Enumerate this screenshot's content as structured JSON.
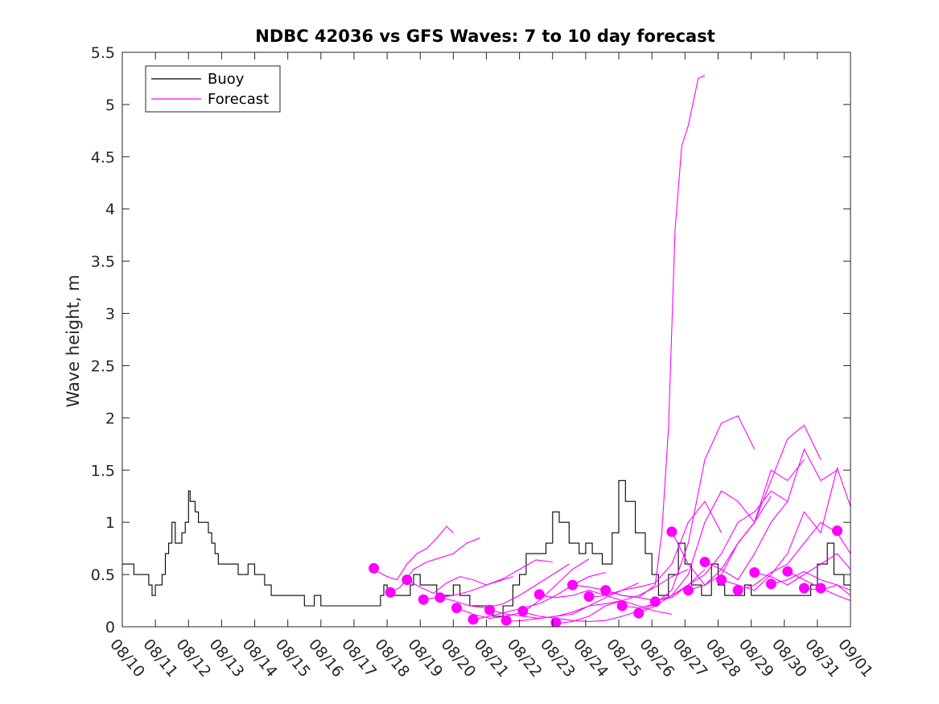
{
  "chart_data": {
    "type": "line",
    "title": "NDBC 42036 vs GFS Waves: 7 to 10 day forecast",
    "xlabel": "",
    "ylabel": "Wave height, m",
    "xlim": [
      "08/10",
      "09/01"
    ],
    "ylim": [
      0,
      5.5
    ],
    "x_ticks": [
      "08/10",
      "08/11",
      "08/12",
      "08/13",
      "08/14",
      "08/15",
      "08/16",
      "08/17",
      "08/18",
      "08/19",
      "08/20",
      "08/21",
      "08/22",
      "08/23",
      "08/24",
      "08/25",
      "08/26",
      "08/27",
      "08/28",
      "08/29",
      "08/30",
      "08/31",
      "09/01"
    ],
    "y_ticks": [
      "0",
      "0.5",
      "1",
      "1.5",
      "2",
      "2.5",
      "3",
      "3.5",
      "4",
      "4.5",
      "5",
      "5.5"
    ],
    "grid": false,
    "legend": {
      "placement": "top-left",
      "entries": [
        "Buoy",
        "Forecast"
      ]
    },
    "colors": {
      "buoy": "#000000",
      "forecast": "#ff00ff"
    },
    "series": [
      {
        "name": "Buoy",
        "x": [
          0,
          0.3,
          0.35,
          0.5,
          0.6,
          0.8,
          0.9,
          1.0,
          1.2,
          1.3,
          1.4,
          1.5,
          1.6,
          1.7,
          1.8,
          1.9,
          2.0,
          2.05,
          2.1,
          2.2,
          2.3,
          2.5,
          2.6,
          2.7,
          2.8,
          2.9,
          3.0,
          3.2,
          3.5,
          3.8,
          4.0,
          4.3,
          4.5,
          4.8,
          5.0,
          5.5,
          5.8,
          6.0,
          6.3,
          6.5,
          6.8,
          7.0,
          7.5,
          7.8,
          7.9,
          8.0,
          8.5,
          8.7,
          8.8,
          9.0,
          9.2,
          9.5,
          9.8,
          10.0,
          10.2,
          10.5,
          10.8,
          11.0,
          11.2,
          11.5,
          11.8,
          12.0,
          12.2,
          12.5,
          12.8,
          13.0,
          13.2,
          13.5,
          13.8,
          14.0,
          14.2,
          14.5,
          14.8,
          15.0,
          15.2,
          15.5,
          15.8,
          16.0,
          16.2,
          16.5,
          16.8,
          17.0,
          17.2,
          17.5,
          17.8,
          18.0,
          18.2,
          18.5,
          18.8,
          19.0,
          19.5,
          20.0,
          20.5,
          20.8,
          21.0,
          21.3,
          21.5,
          21.8,
          22.0
        ],
        "values": [
          0.6,
          0.6,
          0.5,
          0.5,
          0.5,
          0.4,
          0.3,
          0.4,
          0.5,
          0.7,
          0.8,
          1.0,
          0.8,
          0.8,
          0.9,
          1.0,
          1.3,
          1.2,
          1.2,
          1.1,
          1.0,
          1.0,
          0.9,
          0.8,
          0.7,
          0.6,
          0.6,
          0.6,
          0.5,
          0.6,
          0.5,
          0.4,
          0.3,
          0.3,
          0.3,
          0.2,
          0.3,
          0.2,
          0.2,
          0.2,
          0.2,
          0.2,
          0.2,
          0.3,
          0.4,
          0.3,
          0.3,
          0.4,
          0.5,
          0.4,
          0.4,
          0.3,
          0.3,
          0.4,
          0.3,
          0.2,
          0.2,
          0.2,
          0.1,
          0.2,
          0.4,
          0.5,
          0.7,
          0.7,
          0.8,
          1.1,
          1.0,
          0.8,
          0.7,
          0.8,
          0.7,
          0.6,
          0.9,
          1.4,
          1.2,
          0.9,
          0.7,
          0.5,
          0.3,
          0.5,
          0.8,
          0.6,
          0.4,
          0.3,
          0.6,
          0.4,
          0.3,
          0.3,
          0.4,
          0.3,
          0.3,
          0.3,
          0.3,
          0.4,
          0.6,
          0.8,
          0.5,
          0.4,
          0.3
        ]
      },
      {
        "name": "Forecast",
        "x": [
          7.6,
          8.0,
          8.3,
          8.6,
          8.9,
          9.2,
          9.5,
          9.8,
          10.0
        ],
        "values": [
          0.55,
          0.48,
          0.45,
          0.6,
          0.7,
          0.75,
          0.85,
          0.96,
          0.9
        ]
      },
      {
        "name": "Forecast",
        "x": [
          8.1,
          8.4,
          8.8,
          9.2,
          9.6,
          10.0,
          10.4,
          10.8
        ],
        "values": [
          0.33,
          0.38,
          0.55,
          0.62,
          0.66,
          0.7,
          0.8,
          0.85
        ]
      },
      {
        "name": "Forecast",
        "x": [
          8.6,
          9.0,
          9.4,
          9.8,
          10.2,
          10.6,
          11.0,
          11.4,
          11.8
        ],
        "values": [
          0.45,
          0.38,
          0.32,
          0.42,
          0.48,
          0.45,
          0.4,
          0.44,
          0.48
        ]
      },
      {
        "name": "Forecast",
        "x": [
          9.1,
          9.5,
          10.0,
          10.5,
          11.0,
          11.5,
          12.0,
          12.5,
          13.0
        ],
        "values": [
          0.26,
          0.28,
          0.3,
          0.34,
          0.4,
          0.46,
          0.55,
          0.64,
          0.62
        ]
      },
      {
        "name": "Forecast",
        "x": [
          9.6,
          10.0,
          10.5,
          11.0,
          11.5,
          12.0,
          12.5,
          13.0,
          13.5
        ],
        "values": [
          0.28,
          0.25,
          0.2,
          0.18,
          0.22,
          0.3,
          0.4,
          0.5,
          0.6
        ]
      },
      {
        "name": "Forecast",
        "x": [
          10.1,
          10.6,
          11.1,
          11.6,
          12.1,
          12.6,
          13.1,
          13.6,
          14.1
        ],
        "values": [
          0.18,
          0.12,
          0.08,
          0.1,
          0.14,
          0.25,
          0.4,
          0.55,
          0.65
        ]
      },
      {
        "name": "Forecast",
        "x": [
          10.6,
          11.1,
          11.6,
          12.1,
          12.6,
          13.1,
          13.6,
          14.1,
          14.6
        ],
        "values": [
          0.07,
          0.1,
          0.14,
          0.18,
          0.22,
          0.3,
          0.4,
          0.48,
          0.52
        ]
      },
      {
        "name": "Forecast",
        "x": [
          11.1,
          11.6,
          12.1,
          12.6,
          13.1,
          13.6,
          14.1,
          14.6,
          15.1
        ],
        "values": [
          0.16,
          0.12,
          0.1,
          0.08,
          0.1,
          0.14,
          0.2,
          0.22,
          0.25
        ]
      },
      {
        "name": "Forecast",
        "x": [
          11.6,
          12.1,
          12.6,
          13.1,
          13.6,
          14.1,
          14.6,
          15.1,
          15.6
        ],
        "values": [
          0.05,
          0.06,
          0.08,
          0.1,
          0.12,
          0.2,
          0.28,
          0.35,
          0.42
        ]
      },
      {
        "name": "Forecast",
        "x": [
          12.1,
          12.6,
          13.1,
          13.6,
          14.1,
          14.6,
          15.1,
          15.6,
          16.1
        ],
        "values": [
          0.14,
          0.1,
          0.08,
          0.06,
          0.05,
          0.06,
          0.1,
          0.15,
          0.22
        ]
      },
      {
        "name": "Forecast",
        "x": [
          12.6,
          13.1,
          13.6,
          14.1,
          14.6,
          15.1,
          15.6,
          16.1,
          16.6
        ],
        "values": [
          0.3,
          0.28,
          0.3,
          0.35,
          0.3,
          0.25,
          0.2,
          0.15,
          0.12
        ]
      },
      {
        "name": "Forecast",
        "x": [
          13.1,
          13.6,
          14.1,
          14.6,
          15.1,
          15.6,
          16.1,
          16.6,
          17.1
        ],
        "values": [
          0.03,
          0.05,
          0.1,
          0.2,
          0.25,
          0.3,
          0.38,
          0.48,
          0.55
        ]
      },
      {
        "name": "Forecast",
        "x": [
          13.6,
          14.1,
          14.6,
          15.1,
          15.6,
          16.1,
          16.6,
          17.1,
          17.6
        ],
        "values": [
          0.4,
          0.38,
          0.35,
          0.3,
          0.28,
          0.25,
          0.28,
          0.4,
          0.55
        ]
      },
      {
        "name": "Forecast",
        "x": [
          14.1,
          14.6,
          15.1,
          15.6,
          16.1,
          16.6,
          17.1,
          17.6,
          18.1
        ],
        "values": [
          0.28,
          0.3,
          0.35,
          0.38,
          0.42,
          0.6,
          1.0,
          1.2,
          0.9
        ]
      },
      {
        "name": "Forecast",
        "x": [
          14.6,
          15.1,
          15.6,
          16.1,
          16.3,
          16.5,
          16.7,
          16.9,
          17.1,
          17.4,
          17.6
        ],
        "values": [
          0.35,
          0.3,
          0.28,
          0.4,
          0.9,
          1.9,
          3.8,
          4.6,
          4.8,
          5.25,
          5.28
        ]
      },
      {
        "name": "Forecast",
        "x": [
          15.1,
          15.6,
          16.1,
          16.6,
          17.1,
          17.6,
          18.1,
          18.6,
          19.1
        ],
        "values": [
          0.2,
          0.18,
          0.22,
          0.35,
          0.8,
          1.6,
          1.95,
          2.02,
          1.7
        ]
      },
      {
        "name": "Forecast",
        "x": [
          15.6,
          16.1,
          16.6,
          17.1,
          17.6,
          18.1,
          18.6,
          19.1,
          19.6
        ],
        "values": [
          0.13,
          0.2,
          0.3,
          0.5,
          1.0,
          1.3,
          1.2,
          1.0,
          1.25
        ]
      },
      {
        "name": "Forecast",
        "x": [
          16.1,
          16.6,
          17.1,
          17.6,
          18.1,
          18.6,
          19.1,
          19.6,
          20.1
        ],
        "values": [
          0.24,
          0.3,
          0.4,
          0.5,
          0.7,
          1.0,
          1.1,
          1.3,
          1.2
        ]
      },
      {
        "name": "Forecast",
        "x": [
          16.6,
          17.1,
          17.6,
          18.1,
          18.6,
          19.1,
          19.6,
          20.1,
          20.6
        ],
        "values": [
          0.91,
          0.6,
          0.4,
          0.5,
          0.8,
          1.0,
          1.5,
          1.4,
          1.6
        ]
      },
      {
        "name": "Forecast",
        "x": [
          17.1,
          17.6,
          18.1,
          18.6,
          19.1,
          19.6,
          20.1,
          20.6,
          21.1
        ],
        "values": [
          0.35,
          0.4,
          0.55,
          0.8,
          1.0,
          1.4,
          1.8,
          1.93,
          1.6
        ]
      },
      {
        "name": "Forecast",
        "x": [
          17.6,
          18.1,
          18.6,
          19.1,
          19.6,
          20.1,
          20.6,
          21.1,
          21.6
        ],
        "values": [
          0.62,
          0.55,
          0.45,
          0.7,
          1.0,
          1.2,
          1.7,
          1.4,
          1.5
        ]
      },
      {
        "name": "Forecast",
        "x": [
          18.1,
          18.6,
          19.1,
          19.6,
          20.1,
          20.6,
          21.1,
          21.6,
          22.0
        ],
        "values": [
          0.45,
          0.4,
          0.35,
          0.5,
          0.7,
          1.1,
          0.9,
          1.52,
          1.15
        ]
      },
      {
        "name": "Forecast",
        "x": [
          18.6,
          19.1,
          19.6,
          20.1,
          20.6,
          21.1,
          21.6,
          22.0
        ],
        "values": [
          0.35,
          0.4,
          0.52,
          0.6,
          0.8,
          1.0,
          0.9,
          0.7
        ]
      },
      {
        "name": "Forecast",
        "x": [
          19.1,
          19.6,
          20.1,
          20.6,
          21.1,
          21.6,
          22.0
        ],
        "values": [
          0.52,
          0.48,
          0.4,
          0.5,
          0.6,
          0.7,
          0.55
        ]
      },
      {
        "name": "Forecast",
        "x": [
          19.6,
          20.1,
          20.6,
          21.1,
          21.6,
          22.0
        ],
        "values": [
          0.41,
          0.45,
          0.53,
          0.45,
          0.4,
          0.3
        ]
      },
      {
        "name": "Forecast",
        "x": [
          20.1,
          20.6,
          21.1,
          21.6,
          22.0
        ],
        "values": [
          0.53,
          0.45,
          0.37,
          0.3,
          0.25
        ]
      },
      {
        "name": "Forecast",
        "x": [
          20.6,
          21.1,
          21.6,
          22.0
        ],
        "values": [
          0.37,
          0.35,
          0.4,
          0.35
        ]
      }
    ],
    "forecast_markers": {
      "x": [
        7.6,
        8.1,
        8.6,
        9.1,
        9.6,
        10.1,
        10.6,
        11.1,
        11.6,
        12.1,
        12.6,
        13.1,
        13.6,
        14.1,
        14.6,
        15.1,
        15.6,
        16.1,
        16.6,
        17.1,
        17.6,
        18.1,
        18.6,
        19.1,
        19.6,
        20.1,
        20.6,
        21.1,
        21.6
      ],
      "values": [
        0.56,
        0.33,
        0.45,
        0.26,
        0.28,
        0.18,
        0.07,
        0.16,
        0.06,
        0.15,
        0.31,
        0.04,
        0.4,
        0.29,
        0.35,
        0.2,
        0.13,
        0.24,
        0.91,
        0.35,
        0.62,
        0.45,
        0.35,
        0.52,
        0.41,
        0.53,
        0.37,
        0.37,
        0.92
      ]
    }
  }
}
